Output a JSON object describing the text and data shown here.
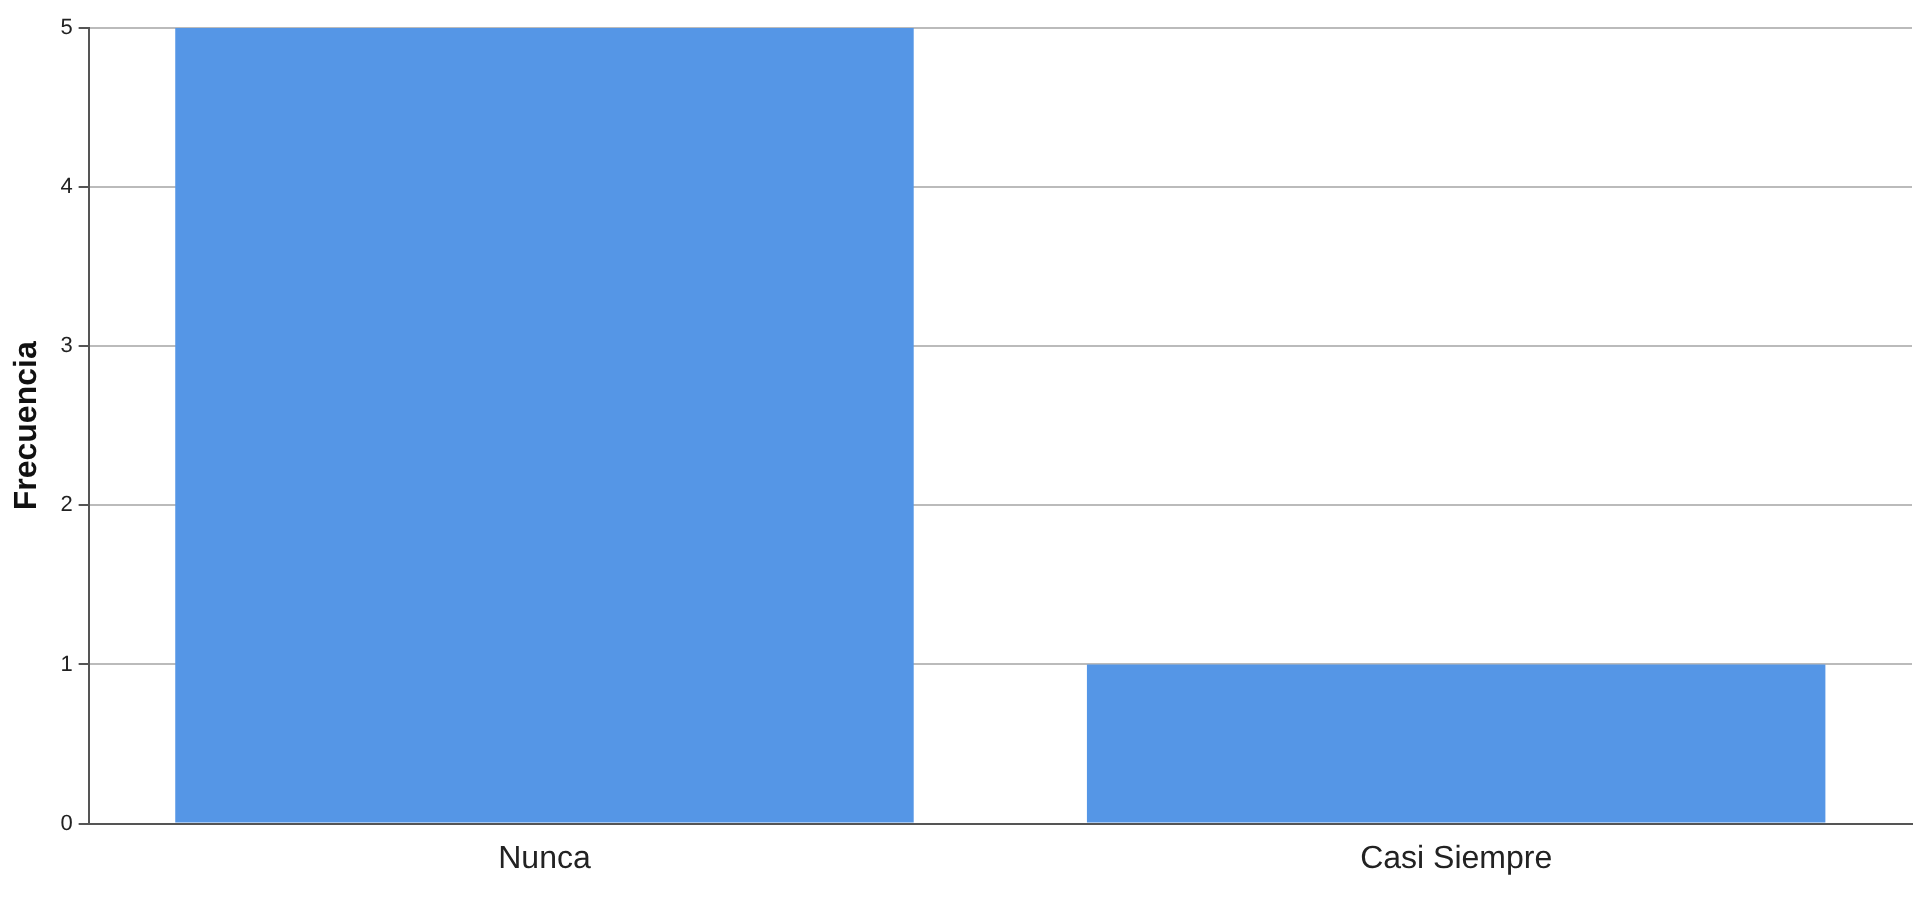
{
  "chart_data": {
    "type": "bar",
    "ylabel": "Frecuencia",
    "categories": [
      "Nunca",
      "Casi Siempre"
    ],
    "values": [
      5,
      1
    ],
    "color": "#5596e6",
    "ylim": [
      0,
      5
    ],
    "yticks": [
      0,
      1,
      2,
      3,
      4,
      5
    ],
    "grid": "y",
    "legend": false
  }
}
